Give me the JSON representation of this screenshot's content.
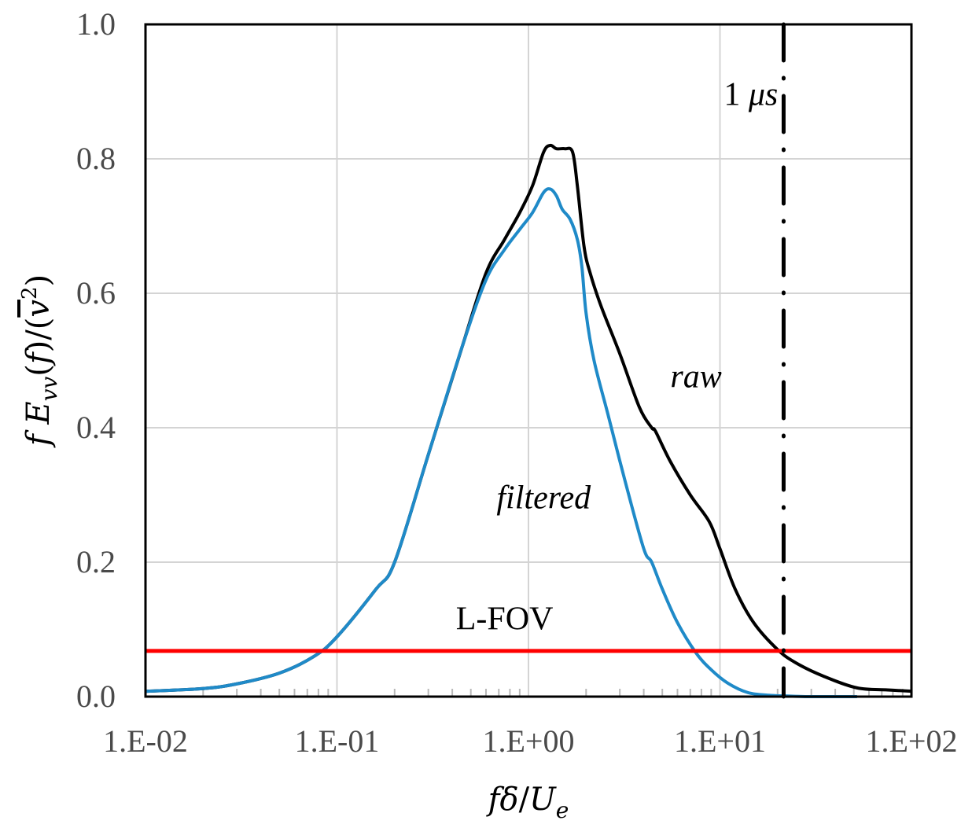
{
  "chart_data": {
    "type": "line",
    "title": "",
    "xlabel": "fδ/U_e",
    "ylabel": "f E_vv(f) / (v²̄)",
    "xscale": "log",
    "xlim": [
      0.01,
      100
    ],
    "ylim": [
      0.0,
      1.0
    ],
    "grid": true,
    "x_ticks": [
      0.01,
      0.1,
      1,
      10,
      100
    ],
    "x_tick_labels": [
      "1.E-02",
      "1.E-01",
      "1.E+00",
      "1.E+01",
      "1.E+02"
    ],
    "y_ticks": [
      0.0,
      0.2,
      0.4,
      0.6,
      0.8,
      1.0
    ],
    "y_tick_labels": [
      "0.0",
      "0.2",
      "0.4",
      "0.6",
      "0.8",
      "1.0"
    ],
    "series": [
      {
        "name": "raw",
        "color": "#000000",
        "x": [
          0.01,
          0.02,
          0.03,
          0.05,
          0.076,
          0.1,
          0.16,
          0.2,
          0.3,
          0.45,
          0.6,
          0.75,
          0.9,
          1.05,
          1.2,
          1.3,
          1.4,
          1.55,
          1.7,
          1.8,
          1.95,
          2.1,
          2.4,
          3.0,
          3.8,
          4.4,
          4.6,
          5.5,
          7.0,
          8.8,
          10,
          12,
          15,
          20,
          25,
          35,
          52,
          75,
          100
        ],
        "y": [
          0.008,
          0.012,
          0.019,
          0.035,
          0.06,
          0.089,
          0.16,
          0.2,
          0.36,
          0.52,
          0.63,
          0.68,
          0.72,
          0.76,
          0.81,
          0.82,
          0.815,
          0.815,
          0.81,
          0.76,
          0.67,
          0.63,
          0.58,
          0.51,
          0.43,
          0.4,
          0.395,
          0.35,
          0.3,
          0.26,
          0.22,
          0.16,
          0.11,
          0.07,
          0.05,
          0.03,
          0.013,
          0.01,
          0.008
        ]
      },
      {
        "name": "filtered",
        "color": "#1f8ac8",
        "x": [
          0.01,
          0.02,
          0.03,
          0.05,
          0.076,
          0.1,
          0.16,
          0.2,
          0.3,
          0.45,
          0.6,
          0.75,
          0.9,
          1.05,
          1.2,
          1.3,
          1.4,
          1.5,
          1.65,
          1.8,
          1.9,
          2.0,
          2.2,
          2.6,
          3.2,
          4.0,
          4.4,
          5.0,
          6.0,
          7.5,
          9.0,
          11,
          14,
          18,
          22,
          30,
          52
        ],
        "y": [
          0.008,
          0.012,
          0.019,
          0.035,
          0.06,
          0.089,
          0.16,
          0.2,
          0.36,
          0.52,
          0.62,
          0.665,
          0.695,
          0.72,
          0.75,
          0.755,
          0.745,
          0.725,
          0.71,
          0.68,
          0.64,
          0.57,
          0.5,
          0.42,
          0.32,
          0.22,
          0.2,
          0.16,
          0.11,
          0.065,
          0.04,
          0.02,
          0.006,
          0.002,
          0.001,
          0.0,
          0.0
        ]
      }
    ],
    "reference_lines": [
      {
        "name": "L-FOV",
        "orientation": "horizontal",
        "value": 0.068,
        "color": "#ff0000",
        "style": "solid"
      },
      {
        "name": "1 μs",
        "orientation": "vertical",
        "value": 21.5,
        "color": "#000000",
        "style": "dash-dot"
      }
    ],
    "annotations": [
      {
        "text": "raw",
        "italic": true,
        "at": [
          7.5,
          0.46
        ]
      },
      {
        "text": "filtered",
        "italic": true,
        "at": [
          1.2,
          0.28
        ]
      },
      {
        "text": "L-FOV",
        "italic": false,
        "at": [
          0.75,
          0.1
        ]
      },
      {
        "text_number": "1",
        "text_unit": "μs",
        "at": [
          14.5,
          0.88
        ]
      }
    ]
  }
}
